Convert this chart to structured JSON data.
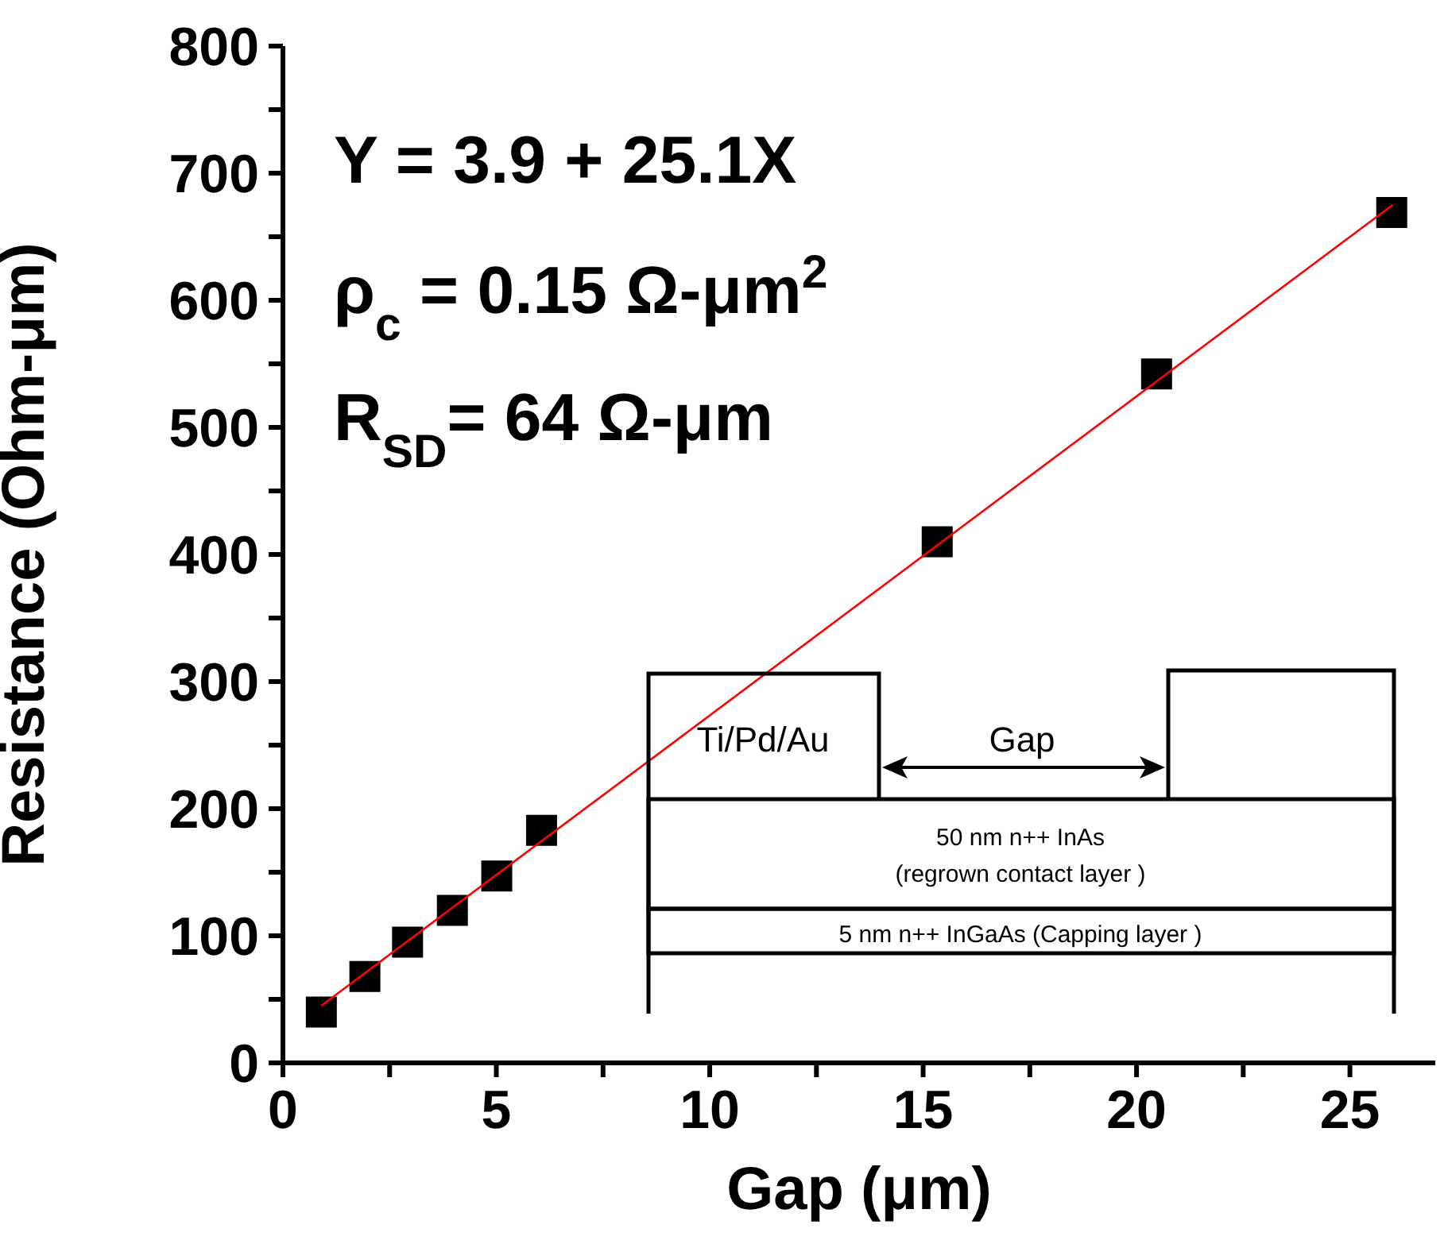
{
  "chart_data": {
    "type": "scatter",
    "xlabel": "Gap (μm)",
    "ylabel": "Resistance (Ohm-μm)",
    "xlim": [
      0,
      27
    ],
    "ylim": [
      0,
      800
    ],
    "xticks": [
      0,
      {
        "value": 2.5,
        "label": null
      },
      5,
      {
        "value": 7.5,
        "label": null
      },
      10,
      {
        "value": 12.5,
        "label": null
      },
      15,
      {
        "value": 17.5,
        "label": null
      },
      20,
      {
        "value": 22.5,
        "label": null
      },
      25
    ],
    "yticks": [
      0,
      {
        "value": 50,
        "label": null
      },
      100,
      {
        "value": 150,
        "label": null
      },
      200,
      {
        "value": 250,
        "label": null
      },
      300,
      {
        "value": 350,
        "label": null
      },
      400,
      {
        "value": 450,
        "label": null
      },
      500,
      {
        "value": 550,
        "label": null
      },
      600,
      {
        "value": 650,
        "label": null
      },
      700,
      {
        "value": 750,
        "label": null
      },
      800
    ],
    "grid": false,
    "legend": false,
    "marker": "square",
    "series": [
      {
        "type": "scatter",
        "color": "#000000",
        "x": [
          0.9,
          1.92,
          2.92,
          3.97,
          5.01,
          6.06,
          15.33,
          20.47,
          25.98
        ],
        "values": [
          40,
          68,
          95,
          120,
          147,
          183,
          410,
          542,
          669
        ]
      },
      {
        "type": "line",
        "color": "#ff0000",
        "marker": "none",
        "line_style": "solid",
        "x": [
          0.9,
          26
        ],
        "values": [
          45,
          675
        ]
      }
    ],
    "annotations": [
      "Y = 3.9 + 25.1X",
      "ρ$_{c}$ = 0.15 Ω-μm$^{2}$",
      "R$_{SD}$= 64 Ω-μm",
      "Ti/Pd/Au",
      "Gap",
      "50  nm n++ InAs",
      "(regrown contact layer  )",
      "5 nm n++ InGaAs  (Capping layer )"
    ]
  }
}
